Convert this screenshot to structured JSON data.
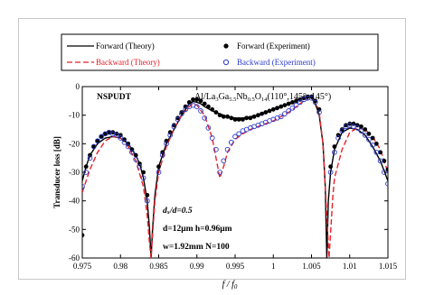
{
  "chart_data": {
    "type": "line",
    "xlabel": "f / f",
    "xlabel_sub": "0",
    "ylabel": "Transducer loss [dB]",
    "xlim": [
      0.975,
      1.015
    ],
    "ylim": [
      -60,
      0
    ],
    "x_ticks": [
      "0.975",
      "0.98",
      "0.985",
      "0.99",
      "0.995",
      "1",
      "1.005",
      "1.01",
      "1.015"
    ],
    "y_ticks": [
      "0",
      "-10",
      "-20",
      "-30",
      "-40",
      "-50",
      "-60"
    ],
    "grid": false,
    "legend_position": "top",
    "legend": [
      {
        "label": "Forward  (Theory)",
        "color": "#000000",
        "style": "solid-line"
      },
      {
        "label": "Forward  (Experiment)",
        "color": "#000000",
        "style": "filled-circle"
      },
      {
        "label": "Backward  (Theory)",
        "color": "#e8202a",
        "style": "dashed-line"
      },
      {
        "label": "Backward  (Experiment)",
        "color": "#2b3bcc",
        "style": "open-circle"
      }
    ],
    "annotations": {
      "top_left": "NSPUDT",
      "material": {
        "base": "Al/La",
        "s1": "3",
        "m1": "Ga",
        "s2": "5.5",
        "m2": "Nb",
        "s3": "0.5",
        "m3": "O",
        "s4": "14",
        "euler": "(110°,145°,  145°)"
      },
      "params": [
        "dₓ/d=0.5",
        "d=12μm  h=0.96μm",
        "w=1.92mm  N=100"
      ]
    },
    "series": [
      {
        "name": "Forward  (Theory)",
        "x": [
          0.975,
          0.9755,
          0.976,
          0.977,
          0.978,
          0.979,
          0.98,
          0.981,
          0.982,
          0.9825,
          0.983,
          0.9835,
          0.9838,
          0.984,
          0.9842,
          0.9845,
          0.985,
          0.986,
          0.987,
          0.988,
          0.989,
          0.9895,
          0.99,
          0.9905,
          0.991,
          0.992,
          0.993,
          0.994,
          0.995,
          0.996,
          0.997,
          0.998,
          0.999,
          1.0,
          1.001,
          1.002,
          1.003,
          1.004,
          1.0045,
          1.005,
          1.0055,
          1.006,
          1.0065,
          1.0068,
          1.007,
          1.0072,
          1.0075,
          1.008,
          1.009,
          1.01,
          1.011,
          1.012,
          1.013,
          1.014,
          1.015
        ],
        "y": [
          -33,
          -28,
          -24,
          -20,
          -18,
          -17.5,
          -18,
          -20,
          -24,
          -27,
          -32,
          -40,
          -50,
          -60,
          -50,
          -38,
          -28,
          -20,
          -15,
          -10,
          -6,
          -5.2,
          -5.5,
          -6,
          -7,
          -8.5,
          -9.5,
          -10.5,
          -11,
          -11,
          -10.5,
          -10,
          -9,
          -8,
          -7,
          -6,
          -5,
          -4,
          -3.5,
          -4,
          -6,
          -10,
          -20,
          -35,
          -60,
          -40,
          -30,
          -22,
          -16,
          -14.5,
          -15,
          -17,
          -21,
          -26,
          -33
        ]
      },
      {
        "name": "Backward  (Theory)",
        "x": [
          0.975,
          0.976,
          0.977,
          0.978,
          0.979,
          0.98,
          0.981,
          0.982,
          0.983,
          0.9835,
          0.9838,
          0.984,
          0.9842,
          0.9845,
          0.985,
          0.986,
          0.987,
          0.988,
          0.989,
          0.9895,
          0.99,
          0.991,
          0.992,
          0.9925,
          0.993,
          0.9935,
          0.994,
          0.995,
          0.996,
          0.997,
          0.998,
          0.999,
          1.0,
          1.001,
          1.002,
          1.003,
          1.004,
          1.0045,
          1.005,
          1.0055,
          1.006,
          1.0065,
          1.007,
          1.0073,
          1.0078,
          1.008,
          1.009,
          1.01,
          1.011,
          1.012,
          1.013,
          1.014,
          1.015
        ],
        "y": [
          -37,
          -29,
          -23,
          -19,
          -17.5,
          -18,
          -21,
          -26,
          -35,
          -45,
          -55,
          -60,
          -52,
          -40,
          -30,
          -21,
          -15,
          -10,
          -7,
          -6,
          -6.5,
          -10,
          -18,
          -25,
          -32,
          -28,
          -23,
          -18.5,
          -16.5,
          -15,
          -14,
          -13,
          -12,
          -10.5,
          -9,
          -7,
          -5,
          -4,
          -3.8,
          -5,
          -9,
          -20,
          -45,
          -60,
          -38,
          -32,
          -22,
          -16,
          -14.5,
          -15,
          -17.5,
          -22,
          -30
        ]
      },
      {
        "name": "Forward  (Experiment)",
        "x": [
          0.975,
          0.9755,
          0.976,
          0.9765,
          0.977,
          0.9775,
          0.978,
          0.9785,
          0.979,
          0.9795,
          0.98,
          0.9805,
          0.981,
          0.9815,
          0.982,
          0.9825,
          0.983,
          0.9835,
          0.985,
          0.9855,
          0.986,
          0.9865,
          0.987,
          0.9875,
          0.988,
          0.9885,
          0.989,
          0.9895,
          0.99,
          0.9905,
          0.991,
          0.9915,
          0.992,
          0.9925,
          0.993,
          0.9935,
          0.994,
          0.9945,
          0.995,
          0.9955,
          0.996,
          0.9965,
          0.997,
          0.9975,
          0.998,
          0.9985,
          0.999,
          0.9995,
          1.0,
          1.0005,
          1.001,
          1.0015,
          1.002,
          1.0025,
          1.003,
          1.0035,
          1.004,
          1.0045,
          1.005,
          1.0055,
          1.006,
          1.0075,
          1.008,
          1.0085,
          1.009,
          1.0095,
          1.01,
          1.0105,
          1.011,
          1.0115,
          1.012,
          1.0125,
          1.013,
          1.0135,
          1.014,
          1.0145,
          1.015
        ],
        "y": [
          -52,
          -28,
          -24,
          -21,
          -19,
          -17.5,
          -16.5,
          -16,
          -16,
          -16.5,
          -17,
          -18.5,
          -20,
          -22,
          -24,
          -27,
          -30,
          -38,
          -28,
          -23,
          -19,
          -16,
          -13.5,
          -11,
          -9,
          -7,
          -5.5,
          -4.5,
          -4.5,
          -5,
          -6,
          -7,
          -8,
          -9,
          -10,
          -10.5,
          -10.5,
          -11,
          -11.5,
          -11.5,
          -11.5,
          -11,
          -11,
          -10.5,
          -10,
          -9.5,
          -9,
          -8.5,
          -8,
          -7.5,
          -7,
          -6.5,
          -6,
          -5.5,
          -5,
          -4.5,
          -4,
          -3.5,
          -3.5,
          -5,
          -8,
          -28,
          -21,
          -17,
          -15,
          -13.5,
          -13,
          -13,
          -13.5,
          -14,
          -15,
          -16.5,
          -18,
          -20,
          -23,
          -26,
          -29
        ]
      },
      {
        "name": "Backward  (Experiment)",
        "x": [
          0.975,
          0.9755,
          0.976,
          0.9765,
          0.977,
          0.9775,
          0.978,
          0.9785,
          0.979,
          0.9795,
          0.98,
          0.9805,
          0.981,
          0.9815,
          0.982,
          0.9825,
          0.983,
          0.9835,
          0.985,
          0.9855,
          0.986,
          0.9865,
          0.987,
          0.9875,
          0.988,
          0.9885,
          0.989,
          0.9895,
          0.99,
          0.9905,
          0.991,
          0.9915,
          0.992,
          0.9925,
          0.993,
          0.9935,
          0.994,
          0.9945,
          0.995,
          0.9955,
          0.996,
          0.9965,
          0.997,
          0.9975,
          0.998,
          0.9985,
          0.999,
          0.9995,
          1.0,
          1.0005,
          1.001,
          1.0015,
          1.002,
          1.0025,
          1.003,
          1.0035,
          1.004,
          1.0045,
          1.005,
          1.0055,
          1.006,
          1.0075,
          1.008,
          1.0085,
          1.009,
          1.0095,
          1.01,
          1.0105,
          1.011,
          1.0115,
          1.012,
          1.0125,
          1.013,
          1.0135,
          1.014,
          1.0145,
          1.015
        ],
        "y": [
          -35,
          -30,
          -25,
          -21,
          -19,
          -17.5,
          -16.5,
          -16,
          -16.5,
          -17,
          -18,
          -19.5,
          -21,
          -23,
          -25.5,
          -28,
          -32,
          -40,
          -30,
          -24,
          -20,
          -17,
          -14,
          -11.5,
          -9.5,
          -8,
          -7,
          -6.5,
          -7,
          -8.5,
          -11,
          -14.5,
          -18,
          -22,
          -30,
          -26,
          -22,
          -19.5,
          -17.5,
          -16.5,
          -15.5,
          -15,
          -14.5,
          -14,
          -13.5,
          -13,
          -12.5,
          -12,
          -11.5,
          -11,
          -10.5,
          -9.5,
          -8.5,
          -7.5,
          -6.5,
          -5.5,
          -4.5,
          -4,
          -4,
          -5.5,
          -9,
          -30,
          -23,
          -18,
          -15.5,
          -14,
          -13.5,
          -14,
          -14.5,
          -15.5,
          -17,
          -18.5,
          -20.5,
          -23,
          -26,
          -30,
          -34
        ]
      }
    ]
  }
}
